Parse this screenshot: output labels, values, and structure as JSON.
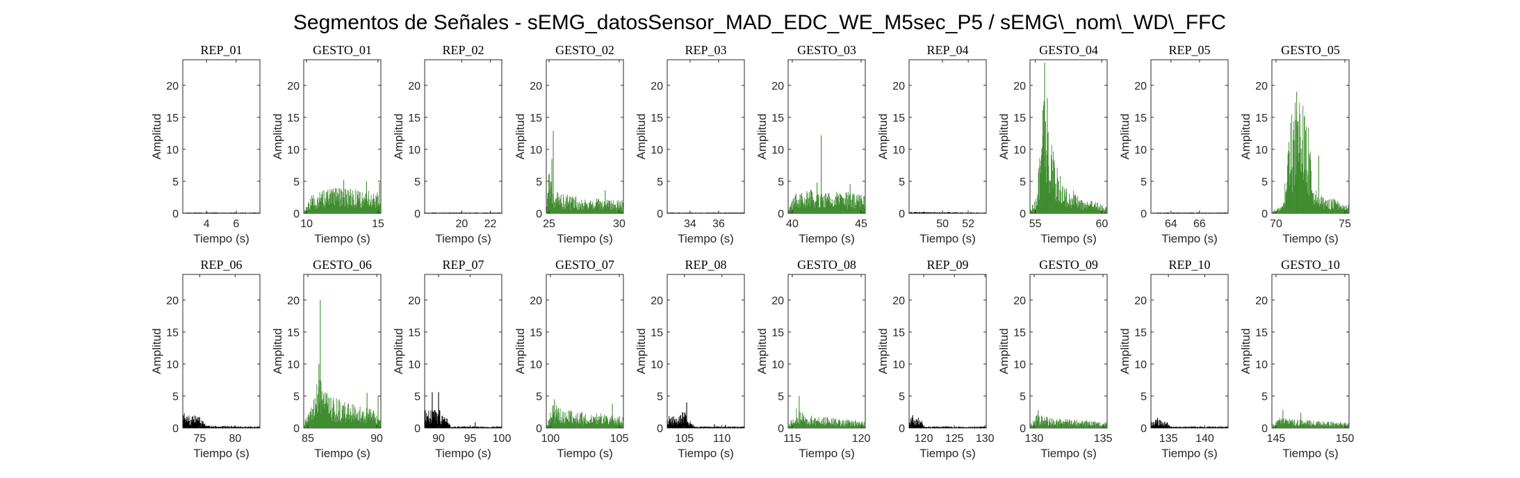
{
  "figure_title": "Segmentos de Señales - sEMG_datosSensor_MAD_EDC_WE_M5sec_P5 / sEMG\\_nom\\_WD\\_FFC",
  "colors": {
    "rep": "#000000",
    "gesto": "#3f8c2f"
  },
  "chart_data": [
    {
      "type": "bar",
      "title": "REP_01",
      "kind": "rep",
      "xlabel": "Tiempo (s)",
      "ylabel": "Amplitud",
      "xlim": [
        2.4,
        7.6
      ],
      "ylim": [
        0,
        24
      ],
      "xticks": [
        4,
        6
      ],
      "xtick_labels": [
        "4",
        "6"
      ],
      "yticks": [
        0,
        5,
        10,
        15,
        20
      ],
      "ytick_labels": [
        "0",
        "5",
        "10",
        "15",
        "20"
      ],
      "profile": [
        [
          2.4,
          0.1
        ],
        [
          7.6,
          0.1
        ]
      ],
      "spikes": []
    },
    {
      "type": "bar",
      "title": "GESTO_01",
      "kind": "gesto",
      "xlabel": "Tiempo (s)",
      "ylabel": "Amplitud",
      "xlim": [
        9.8,
        15.2
      ],
      "ylim": [
        0,
        24
      ],
      "xticks": [
        10,
        15
      ],
      "xtick_labels": [
        "10",
        "15"
      ],
      "yticks": [
        0,
        5,
        10,
        15,
        20
      ],
      "ytick_labels": [
        "0",
        "5",
        "10",
        "15",
        "20"
      ],
      "profile": [
        [
          9.8,
          0.3
        ],
        [
          10.4,
          2.3
        ],
        [
          11.5,
          3.0
        ],
        [
          12.5,
          3.2
        ],
        [
          14.0,
          2.9
        ],
        [
          15.2,
          2.4
        ]
      ],
      "spikes": [
        [
          12.6,
          5.2
        ],
        [
          14.2,
          5.0
        ],
        [
          15.1,
          4.8
        ]
      ]
    },
    {
      "type": "bar",
      "title": "REP_02",
      "kind": "rep",
      "xlabel": "Tiempo (s)",
      "ylabel": "Amplitud",
      "xlim": [
        17.4,
        22.8
      ],
      "ylim": [
        0,
        24
      ],
      "xticks": [
        20,
        22
      ],
      "xtick_labels": [
        "20",
        "22"
      ],
      "yticks": [
        0,
        5,
        10,
        15,
        20
      ],
      "ytick_labels": [
        "0",
        "5",
        "10",
        "15",
        "20"
      ],
      "profile": [
        [
          17.4,
          0.1
        ],
        [
          22.8,
          0.1
        ]
      ],
      "spikes": []
    },
    {
      "type": "bar",
      "title": "GESTO_02",
      "kind": "gesto",
      "xlabel": "Tiempo (s)",
      "ylabel": "Amplitud",
      "xlim": [
        24.8,
        30.3
      ],
      "ylim": [
        0,
        24
      ],
      "xticks": [
        25,
        30
      ],
      "xtick_labels": [
        "25",
        "30"
      ],
      "yticks": [
        0,
        5,
        10,
        15,
        20
      ],
      "ytick_labels": [
        "0",
        "5",
        "10",
        "15",
        "20"
      ],
      "profile": [
        [
          24.8,
          0.5
        ],
        [
          25.0,
          6.0
        ],
        [
          25.3,
          2.8
        ],
        [
          27.0,
          2.0
        ],
        [
          30.3,
          1.6
        ]
      ],
      "spikes": [
        [
          25.3,
          12.9
        ],
        [
          25.2,
          8.5
        ],
        [
          29.0,
          3.6
        ]
      ]
    },
    {
      "type": "bar",
      "title": "REP_03",
      "kind": "rep",
      "xlabel": "Tiempo (s)",
      "ylabel": "Amplitud",
      "xlim": [
        32.4,
        37.8
      ],
      "ylim": [
        0,
        24
      ],
      "xticks": [
        34,
        36
      ],
      "xtick_labels": [
        "34",
        "36"
      ],
      "yticks": [
        0,
        5,
        10,
        15,
        20
      ],
      "ytick_labels": [
        "0",
        "5",
        "10",
        "15",
        "20"
      ],
      "profile": [
        [
          32.4,
          0.1
        ],
        [
          37.8,
          0.1
        ]
      ],
      "spikes": []
    },
    {
      "type": "bar",
      "title": "GESTO_03",
      "kind": "gesto",
      "xlabel": "Tiempo (s)",
      "ylabel": "Amplitud",
      "xlim": [
        39.7,
        45.3
      ],
      "ylim": [
        0,
        24
      ],
      "xticks": [
        40,
        45
      ],
      "xtick_labels": [
        "40",
        "45"
      ],
      "yticks": [
        0,
        5,
        10,
        15,
        20
      ],
      "ytick_labels": [
        "0",
        "5",
        "10",
        "15",
        "20"
      ],
      "profile": [
        [
          39.7,
          0.3
        ],
        [
          40.3,
          2.8
        ],
        [
          41.5,
          3.0
        ],
        [
          43.0,
          2.8
        ],
        [
          45.3,
          2.4
        ]
      ],
      "spikes": [
        [
          42.1,
          12.2
        ],
        [
          41.8,
          4.8
        ],
        [
          44.2,
          4.6
        ]
      ]
    },
    {
      "type": "bar",
      "title": "REP_04",
      "kind": "rep",
      "xlabel": "Tiempo (s)",
      "ylabel": "Amplitud",
      "xlim": [
        47.4,
        53.4
      ],
      "ylim": [
        0,
        24
      ],
      "xticks": [
        50,
        52
      ],
      "xtick_labels": [
        "50",
        "52"
      ],
      "yticks": [
        0,
        5,
        10,
        15,
        20
      ],
      "ytick_labels": [
        "0",
        "5",
        "10",
        "15",
        "20"
      ],
      "profile": [
        [
          47.4,
          0.2
        ],
        [
          53.4,
          0.1
        ]
      ],
      "spikes": []
    },
    {
      "type": "bar",
      "title": "GESTO_04",
      "kind": "gesto",
      "xlabel": "Tiempo (s)",
      "ylabel": "Amplitud",
      "xlim": [
        54.6,
        60.4
      ],
      "ylim": [
        0,
        24
      ],
      "xticks": [
        55,
        60
      ],
      "xtick_labels": [
        "55",
        "60"
      ],
      "yticks": [
        0,
        5,
        10,
        15,
        20
      ],
      "ytick_labels": [
        "0",
        "5",
        "10",
        "15",
        "20"
      ],
      "profile": [
        [
          54.6,
          0.3
        ],
        [
          55.1,
          2.5
        ],
        [
          55.6,
          14.0
        ],
        [
          56.2,
          9.0
        ],
        [
          57.0,
          4.0
        ],
        [
          58.5,
          1.8
        ],
        [
          60.4,
          1.0
        ]
      ],
      "spikes": [
        [
          55.7,
          23.5
        ],
        [
          55.9,
          18.0
        ]
      ]
    },
    {
      "type": "bar",
      "title": "REP_05",
      "kind": "rep",
      "xlabel": "Tiempo (s)",
      "ylabel": "Amplitud",
      "xlim": [
        62.6,
        68.0
      ],
      "ylim": [
        0,
        24
      ],
      "xticks": [
        64,
        66
      ],
      "xtick_labels": [
        "64",
        "66"
      ],
      "yticks": [
        0,
        5,
        10,
        15,
        20
      ],
      "ytick_labels": [
        "0",
        "5",
        "10",
        "15",
        "20"
      ],
      "profile": [
        [
          62.6,
          0.1
        ],
        [
          68.0,
          0.1
        ]
      ],
      "spikes": []
    },
    {
      "type": "bar",
      "title": "GESTO_05",
      "kind": "gesto",
      "xlabel": "Tiempo (s)",
      "ylabel": "Amplitud",
      "xlim": [
        69.7,
        75.3
      ],
      "ylim": [
        0,
        24
      ],
      "xticks": [
        70,
        75
      ],
      "xtick_labels": [
        "70",
        "75"
      ],
      "yticks": [
        0,
        5,
        10,
        15,
        20
      ],
      "ytick_labels": [
        "0",
        "5",
        "10",
        "15",
        "20"
      ],
      "profile": [
        [
          69.7,
          0.3
        ],
        [
          70.5,
          1.0
        ],
        [
          70.9,
          10.0
        ],
        [
          71.5,
          15.0
        ],
        [
          72.3,
          12.0
        ],
        [
          72.7,
          3.0
        ],
        [
          73.5,
          2.2
        ],
        [
          75.3,
          1.0
        ]
      ],
      "spikes": [
        [
          71.5,
          19.0
        ],
        [
          73.1,
          9.0
        ]
      ]
    },
    {
      "type": "bar",
      "title": "REP_06",
      "kind": "rep",
      "xlabel": "Tiempo (s)",
      "ylabel": "Amplitud",
      "xlim": [
        72.6,
        83.5
      ],
      "ylim": [
        0,
        24
      ],
      "xticks": [
        75,
        80
      ],
      "xtick_labels": [
        "75",
        "80"
      ],
      "yticks": [
        0,
        5,
        10,
        15,
        20
      ],
      "ytick_labels": [
        "0",
        "5",
        "10",
        "15",
        "20"
      ],
      "profile": [
        [
          72.6,
          2.2
        ],
        [
          75.0,
          1.4
        ],
        [
          76.0,
          0.3
        ],
        [
          83.5,
          0.2
        ]
      ],
      "spikes": []
    },
    {
      "type": "bar",
      "title": "GESTO_06",
      "kind": "gesto",
      "xlabel": "Tiempo (s)",
      "ylabel": "Amplitud",
      "xlim": [
        84.7,
        90.3
      ],
      "ylim": [
        0,
        24
      ],
      "xticks": [
        85,
        90
      ],
      "xtick_labels": [
        "85",
        "90"
      ],
      "yticks": [
        0,
        5,
        10,
        15,
        20
      ],
      "ytick_labels": [
        "0",
        "5",
        "10",
        "15",
        "20"
      ],
      "profile": [
        [
          84.7,
          0.5
        ],
        [
          85.3,
          3.0
        ],
        [
          85.8,
          6.5
        ],
        [
          86.5,
          4.0
        ],
        [
          88.0,
          3.0
        ],
        [
          90.3,
          2.0
        ]
      ],
      "spikes": [
        [
          85.9,
          20.0
        ],
        [
          85.8,
          10.0
        ],
        [
          89.3,
          5.5
        ],
        [
          90.1,
          5.0
        ]
      ]
    },
    {
      "type": "bar",
      "title": "REP_07",
      "kind": "rep",
      "xlabel": "Tiempo (s)",
      "ylabel": "Amplitud",
      "xlim": [
        87.8,
        100.0
      ],
      "ylim": [
        0,
        24
      ],
      "xticks": [
        90,
        95,
        100
      ],
      "xtick_labels": [
        "90",
        "95",
        "100"
      ],
      "yticks": [
        0,
        5,
        10,
        15,
        20
      ],
      "ytick_labels": [
        "0",
        "5",
        "10",
        "15",
        "20"
      ],
      "profile": [
        [
          87.8,
          2.4
        ],
        [
          90.5,
          2.2
        ],
        [
          91.5,
          1.0
        ],
        [
          92.0,
          0.2
        ],
        [
          100.0,
          0.2
        ]
      ],
      "spikes": [
        [
          89.0,
          5.6
        ],
        [
          90.0,
          5.6
        ],
        [
          95.8,
          0.9
        ]
      ]
    },
    {
      "type": "bar",
      "title": "GESTO_07",
      "kind": "gesto",
      "xlabel": "Tiempo (s)",
      "ylabel": "Amplitud",
      "xlim": [
        99.7,
        105.3
      ],
      "ylim": [
        0,
        24
      ],
      "xticks": [
        100,
        105
      ],
      "xtick_labels": [
        "100",
        "105"
      ],
      "yticks": [
        0,
        5,
        10,
        15,
        20
      ],
      "ytick_labels": [
        "0",
        "5",
        "10",
        "15",
        "20"
      ],
      "profile": [
        [
          99.7,
          0.3
        ],
        [
          100.2,
          3.0
        ],
        [
          101.0,
          2.2
        ],
        [
          103.0,
          1.8
        ],
        [
          105.3,
          1.6
        ]
      ],
      "spikes": [
        [
          100.3,
          4.5
        ],
        [
          104.5,
          3.8
        ]
      ]
    },
    {
      "type": "bar",
      "title": "REP_08",
      "kind": "rep",
      "xlabel": "Tiempo (s)",
      "ylabel": "Amplitud",
      "xlim": [
        102.7,
        113.0
      ],
      "ylim": [
        0,
        24
      ],
      "xticks": [
        105,
        110
      ],
      "xtick_labels": [
        "105",
        "110"
      ],
      "yticks": [
        0,
        5,
        10,
        15,
        20
      ],
      "ytick_labels": [
        "0",
        "5",
        "10",
        "15",
        "20"
      ],
      "profile": [
        [
          102.7,
          1.4
        ],
        [
          105.0,
          2.0
        ],
        [
          106.0,
          0.6
        ],
        [
          106.5,
          0.2
        ],
        [
          113.0,
          0.2
        ]
      ],
      "spikes": [
        [
          105.3,
          4.0
        ],
        [
          109.0,
          0.6
        ],
        [
          110.5,
          0.5
        ]
      ]
    },
    {
      "type": "bar",
      "title": "GESTO_08",
      "kind": "gesto",
      "xlabel": "Tiempo (s)",
      "ylabel": "Amplitud",
      "xlim": [
        114.7,
        120.3
      ],
      "ylim": [
        0,
        24
      ],
      "xticks": [
        115,
        120
      ],
      "xtick_labels": [
        "115",
        "120"
      ],
      "yticks": [
        0,
        5,
        10,
        15,
        20
      ],
      "ytick_labels": [
        "0",
        "5",
        "10",
        "15",
        "20"
      ],
      "profile": [
        [
          114.7,
          0.3
        ],
        [
          115.3,
          2.5
        ],
        [
          116.0,
          1.6
        ],
        [
          118.0,
          1.2
        ],
        [
          120.3,
          0.8
        ]
      ],
      "spikes": [
        [
          115.5,
          5.0
        ]
      ]
    },
    {
      "type": "bar",
      "title": "REP_09",
      "kind": "rep",
      "xlabel": "Tiempo (s)",
      "ylabel": "Amplitud",
      "xlim": [
        117.6,
        130.2
      ],
      "ylim": [
        0,
        24
      ],
      "xticks": [
        120,
        125,
        130
      ],
      "xtick_labels": [
        "120",
        "125",
        "130"
      ],
      "yticks": [
        0,
        5,
        10,
        15,
        20
      ],
      "ytick_labels": [
        "0",
        "5",
        "10",
        "15",
        "20"
      ],
      "profile": [
        [
          117.6,
          1.4
        ],
        [
          119.5,
          1.2
        ],
        [
          120.0,
          0.2
        ],
        [
          130.2,
          0.2
        ]
      ],
      "spikes": [
        [
          118.2,
          2.0
        ]
      ]
    },
    {
      "type": "bar",
      "title": "GESTO_09",
      "kind": "gesto",
      "xlabel": "Tiempo (s)",
      "ylabel": "Amplitud",
      "xlim": [
        129.7,
        135.3
      ],
      "ylim": [
        0,
        24
      ],
      "xticks": [
        130,
        135
      ],
      "xtick_labels": [
        "130",
        "135"
      ],
      "yticks": [
        0,
        5,
        10,
        15,
        20
      ],
      "ytick_labels": [
        "0",
        "5",
        "10",
        "15",
        "20"
      ],
      "profile": [
        [
          129.7,
          0.3
        ],
        [
          130.2,
          1.6
        ],
        [
          131.5,
          1.2
        ],
        [
          133.0,
          1.0
        ],
        [
          135.3,
          0.8
        ]
      ],
      "spikes": [
        [
          130.3,
          2.8
        ]
      ]
    },
    {
      "type": "bar",
      "title": "REP_10",
      "kind": "rep",
      "xlabel": "Tiempo (s)",
      "ylabel": "Amplitud",
      "xlim": [
        132.6,
        143.2
      ],
      "ylim": [
        0,
        24
      ],
      "xticks": [
        135,
        140
      ],
      "xtick_labels": [
        "135",
        "140"
      ],
      "yticks": [
        0,
        5,
        10,
        15,
        20
      ],
      "ytick_labels": [
        "0",
        "5",
        "10",
        "15",
        "20"
      ],
      "profile": [
        [
          132.6,
          1.1
        ],
        [
          134.8,
          1.0
        ],
        [
          135.2,
          0.2
        ],
        [
          143.2,
          0.2
        ]
      ],
      "spikes": [
        [
          133.5,
          1.6
        ]
      ]
    },
    {
      "type": "bar",
      "title": "GESTO_10",
      "kind": "gesto",
      "xlabel": "Tiempo (s)",
      "ylabel": "Amplitud",
      "xlim": [
        144.7,
        150.3
      ],
      "ylim": [
        0,
        24
      ],
      "xticks": [
        145,
        150
      ],
      "xtick_labels": [
        "145",
        "150"
      ],
      "yticks": [
        0,
        5,
        10,
        15,
        20
      ],
      "ytick_labels": [
        "0",
        "5",
        "10",
        "15",
        "20"
      ],
      "profile": [
        [
          144.7,
          0.3
        ],
        [
          145.3,
          1.4
        ],
        [
          147.0,
          1.0
        ],
        [
          150.3,
          0.6
        ]
      ],
      "spikes": [
        [
          145.5,
          2.8
        ],
        [
          146.8,
          2.4
        ]
      ]
    }
  ]
}
